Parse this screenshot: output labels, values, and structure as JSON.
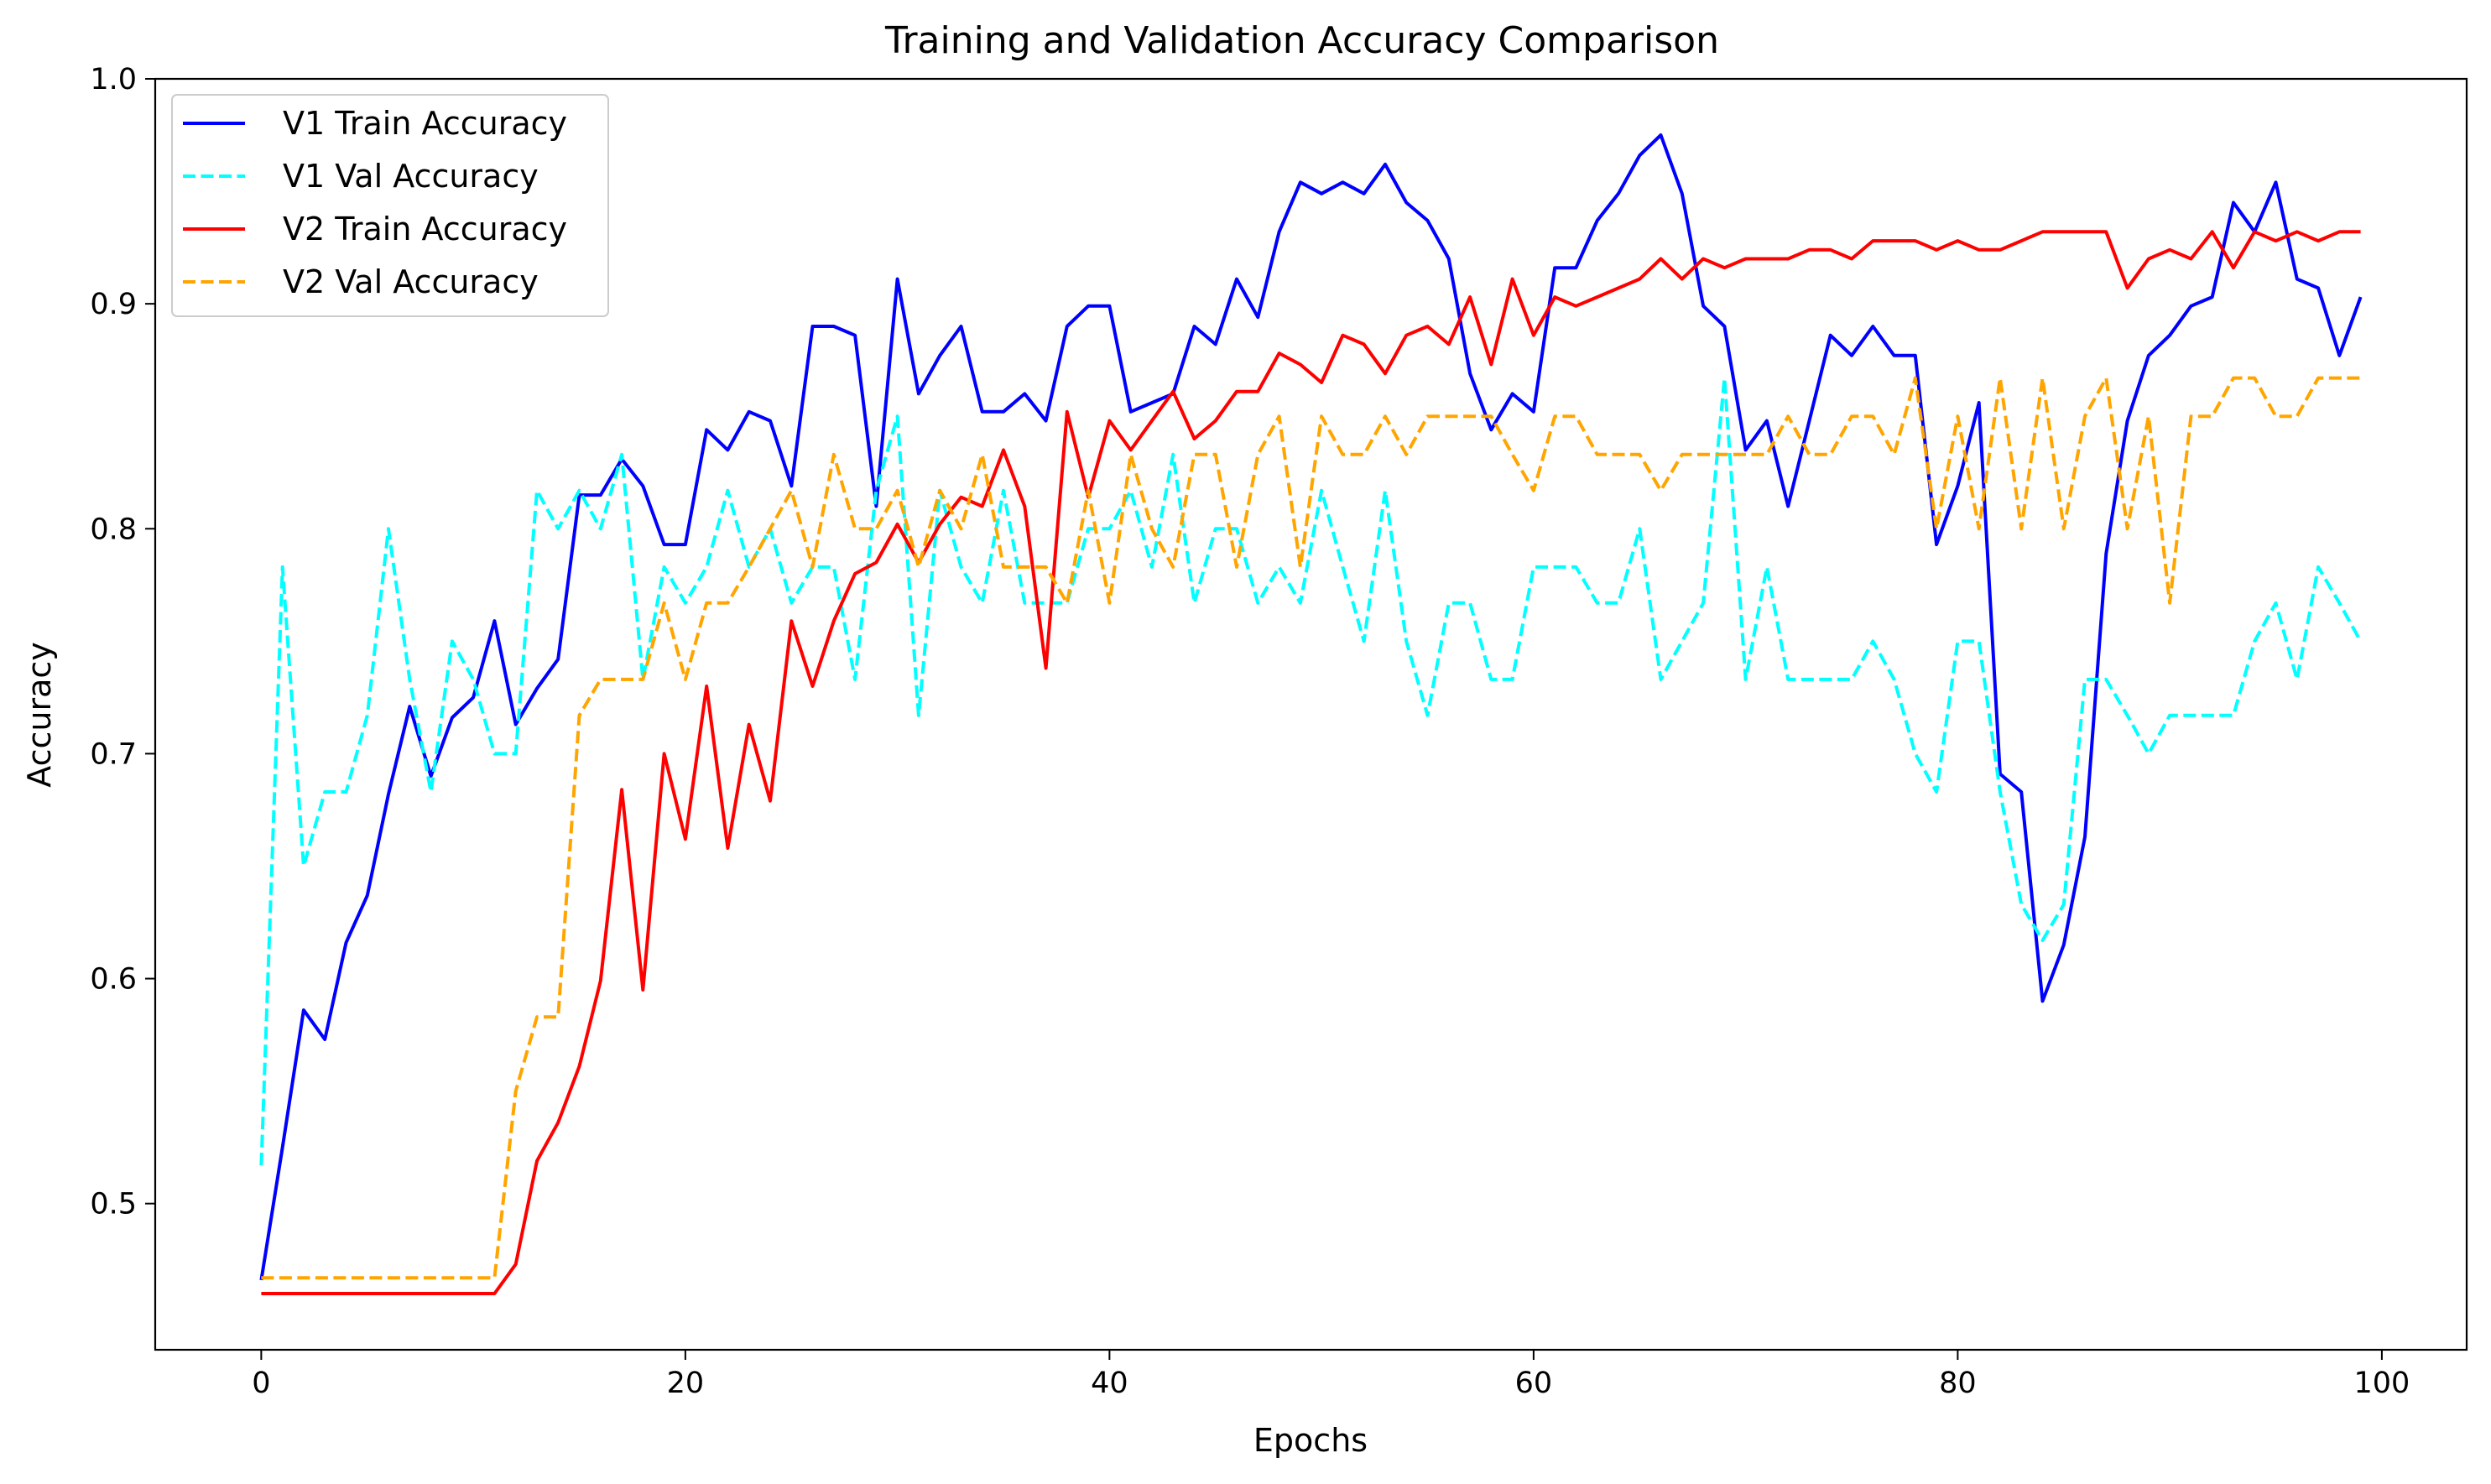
{
  "chart_data": {
    "type": "line",
    "title": "Training and Validation Accuracy Comparison",
    "xlabel": "Epochs",
    "ylabel": "Accuracy",
    "xlim": [
      -5,
      104
    ],
    "ylim": [
      0.435,
      1.0
    ],
    "xticks": [
      0,
      20,
      40,
      60,
      80,
      100
    ],
    "yticks": [
      0.5,
      0.6,
      0.7,
      0.8,
      0.9,
      1.0
    ],
    "legend_position": "upper-left",
    "x": [
      0,
      1,
      2,
      3,
      4,
      5,
      6,
      7,
      8,
      9,
      10,
      11,
      12,
      13,
      14,
      15,
      16,
      17,
      18,
      19,
      20,
      21,
      22,
      23,
      24,
      25,
      26,
      27,
      28,
      29,
      30,
      31,
      32,
      33,
      34,
      35,
      36,
      37,
      38,
      39,
      40,
      41,
      42,
      43,
      44,
      45,
      46,
      47,
      48,
      49,
      50,
      51,
      52,
      53,
      54,
      55,
      56,
      57,
      58,
      59,
      60,
      61,
      62,
      63,
      64,
      65,
      66,
      67,
      68,
      69,
      70,
      71,
      72,
      73,
      74,
      75,
      76,
      77,
      78,
      79,
      80,
      81,
      82,
      83,
      84,
      85,
      86,
      87,
      88,
      89,
      90,
      91,
      92,
      93,
      94,
      95,
      96,
      97,
      98,
      99
    ],
    "series": [
      {
        "name": "V1 Train Accuracy",
        "color": "#0000ff",
        "dash": "solid",
        "values": [
          0.466,
          0.525,
          0.586,
          0.573,
          0.616,
          0.637,
          0.682,
          0.721,
          0.69,
          0.716,
          0.725,
          0.759,
          0.713,
          0.729,
          0.742,
          0.815,
          0.815,
          0.831,
          0.819,
          0.793,
          0.793,
          0.844,
          0.835,
          0.852,
          0.848,
          0.819,
          0.89,
          0.89,
          0.886,
          0.81,
          0.911,
          0.86,
          0.877,
          0.89,
          0.852,
          0.852,
          0.86,
          0.848,
          0.89,
          0.899,
          0.899,
          0.852,
          0.856,
          0.86,
          0.89,
          0.882,
          0.911,
          0.894,
          0.932,
          0.954,
          0.949,
          0.954,
          0.949,
          0.962,
          0.945,
          0.937,
          0.92,
          0.869,
          0.844,
          0.86,
          0.852,
          0.916,
          0.916,
          0.937,
          0.949,
          0.966,
          0.975,
          0.949,
          0.899,
          0.89,
          0.835,
          0.848,
          0.81,
          0.848,
          0.886,
          0.877,
          0.89,
          0.877,
          0.877,
          0.793,
          0.819,
          0.856,
          0.691,
          0.683,
          0.59,
          0.615,
          0.663,
          0.789,
          0.848,
          0.877,
          0.886,
          0.899,
          0.903,
          0.945,
          0.932,
          0.954,
          0.911,
          0.907,
          0.877,
          0.903
        ]
      },
      {
        "name": "V1 Val Accuracy",
        "color": "#00ffff",
        "dash": "dashed",
        "values": [
          0.517,
          0.783,
          0.65,
          0.683,
          0.683,
          0.717,
          0.8,
          0.733,
          0.683,
          0.75,
          0.733,
          0.7,
          0.7,
          0.817,
          0.8,
          0.817,
          0.8,
          0.833,
          0.733,
          0.783,
          0.767,
          0.783,
          0.817,
          0.783,
          0.8,
          0.767,
          0.783,
          0.783,
          0.733,
          0.817,
          0.85,
          0.717,
          0.817,
          0.783,
          0.767,
          0.817,
          0.767,
          0.767,
          0.767,
          0.8,
          0.8,
          0.817,
          0.783,
          0.833,
          0.767,
          0.8,
          0.8,
          0.767,
          0.783,
          0.767,
          0.817,
          0.783,
          0.75,
          0.817,
          0.75,
          0.717,
          0.767,
          0.767,
          0.733,
          0.733,
          0.783,
          0.783,
          0.783,
          0.767,
          0.767,
          0.8,
          0.733,
          0.75,
          0.767,
          0.867,
          0.733,
          0.783,
          0.733,
          0.733,
          0.733,
          0.733,
          0.75,
          0.733,
          0.7,
          0.683,
          0.75,
          0.75,
          0.683,
          0.633,
          0.617,
          0.633,
          0.733,
          0.733,
          0.717,
          0.7,
          0.717,
          0.717,
          0.717,
          0.717,
          0.75,
          0.767,
          0.733,
          0.783,
          0.767,
          0.75
        ]
      },
      {
        "name": "V2 Train Accuracy",
        "color": "#ff0000",
        "dash": "solid",
        "values": [
          0.46,
          0.46,
          0.46,
          0.46,
          0.46,
          0.46,
          0.46,
          0.46,
          0.46,
          0.46,
          0.46,
          0.46,
          0.473,
          0.519,
          0.536,
          0.561,
          0.599,
          0.684,
          0.595,
          0.7,
          0.662,
          0.73,
          0.658,
          0.713,
          0.679,
          0.759,
          0.73,
          0.759,
          0.78,
          0.785,
          0.802,
          0.785,
          0.802,
          0.814,
          0.81,
          0.835,
          0.81,
          0.738,
          0.852,
          0.814,
          0.848,
          0.835,
          0.848,
          0.861,
          0.84,
          0.848,
          0.861,
          0.861,
          0.878,
          0.873,
          0.865,
          0.886,
          0.882,
          0.869,
          0.886,
          0.89,
          0.882,
          0.903,
          0.873,
          0.911,
          0.886,
          0.903,
          0.899,
          0.903,
          0.907,
          0.911,
          0.92,
          0.911,
          0.92,
          0.916,
          0.92,
          0.92,
          0.92,
          0.924,
          0.924,
          0.92,
          0.928,
          0.928,
          0.928,
          0.924,
          0.928,
          0.924,
          0.924,
          0.928,
          0.932,
          0.932,
          0.932,
          0.932,
          0.907,
          0.92,
          0.924,
          0.92,
          0.932,
          0.916,
          0.932,
          0.928,
          0.932,
          0.928,
          0.932,
          0.932
        ]
      },
      {
        "name": "V2 Val Accuracy",
        "color": "#ffa500",
        "dash": "dashed",
        "values": [
          0.467,
          0.467,
          0.467,
          0.467,
          0.467,
          0.467,
          0.467,
          0.467,
          0.467,
          0.467,
          0.467,
          0.467,
          0.55,
          0.583,
          0.583,
          0.717,
          0.733,
          0.733,
          0.733,
          0.767,
          0.733,
          0.767,
          0.767,
          0.783,
          0.8,
          0.817,
          0.783,
          0.833,
          0.8,
          0.8,
          0.817,
          0.783,
          0.817,
          0.8,
          0.833,
          0.783,
          0.783,
          0.783,
          0.767,
          0.817,
          0.767,
          0.833,
          0.8,
          0.783,
          0.833,
          0.833,
          0.783,
          0.833,
          0.85,
          0.783,
          0.85,
          0.833,
          0.833,
          0.85,
          0.833,
          0.85,
          0.85,
          0.85,
          0.85,
          0.833,
          0.817,
          0.85,
          0.85,
          0.833,
          0.833,
          0.833,
          0.817,
          0.833,
          0.833,
          0.833,
          0.833,
          0.833,
          0.85,
          0.833,
          0.833,
          0.85,
          0.85,
          0.833,
          0.867,
          0.8,
          0.85,
          0.8,
          0.867,
          0.8,
          0.867,
          0.8,
          0.85,
          0.867,
          0.8,
          0.85,
          0.767,
          0.85,
          0.85,
          0.867,
          0.867,
          0.85,
          0.85,
          0.867,
          0.867,
          0.867
        ]
      }
    ]
  }
}
